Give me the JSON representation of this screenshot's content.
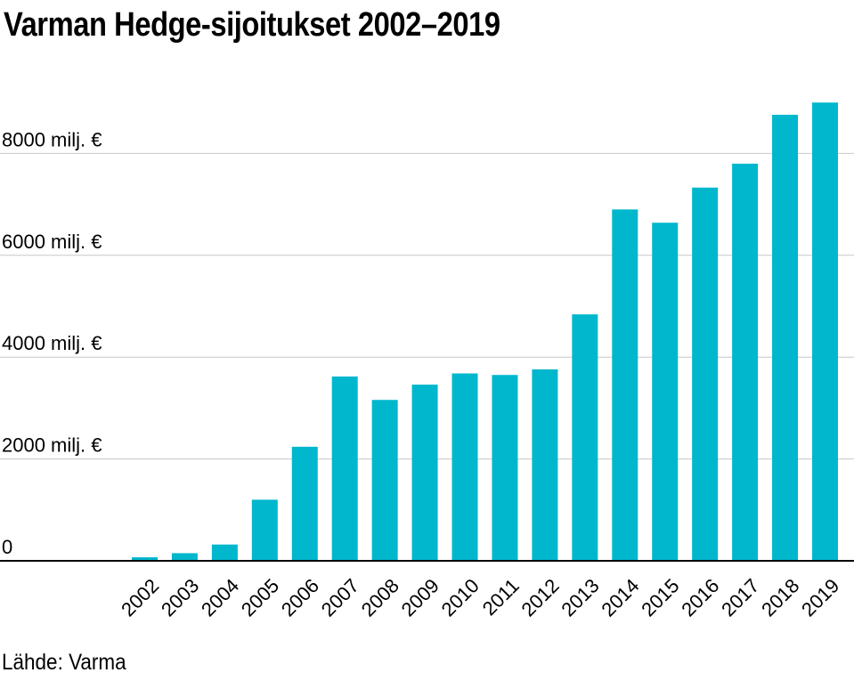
{
  "title": "Varman Hedge-sijoitukset 2002–2019",
  "source": "Lähde: Varma",
  "colors": {
    "bar": "#00b7cd",
    "grid": "#c8c8c8",
    "axis": "#000000",
    "text": "#000000"
  },
  "chart_data": {
    "type": "bar",
    "title": "Varman Hedge-sijoitukset 2002–2019",
    "xlabel": "",
    "ylabel": "",
    "categories": [
      "2002",
      "2003",
      "2004",
      "2005",
      "2006",
      "2007",
      "2008",
      "2009",
      "2010",
      "2011",
      "2012",
      "2013",
      "2014",
      "2015",
      "2016",
      "2017",
      "2018",
      "2019"
    ],
    "values": [
      70,
      150,
      320,
      1200,
      2240,
      3620,
      3160,
      3460,
      3680,
      3650,
      3760,
      4840,
      6900,
      6640,
      7330,
      7800,
      8760,
      9000
    ],
    "ylim": [
      0,
      9000
    ],
    "yticks": [
      {
        "value": 0,
        "label": "0"
      },
      {
        "value": 2000,
        "label": "2000 milj. €"
      },
      {
        "value": 4000,
        "label": "4000 milj. €"
      },
      {
        "value": 6000,
        "label": "6000 milj. €"
      },
      {
        "value": 8000,
        "label": "8000 milj. €"
      }
    ],
    "grid": true,
    "legend": "none",
    "unit": "milj. €"
  }
}
